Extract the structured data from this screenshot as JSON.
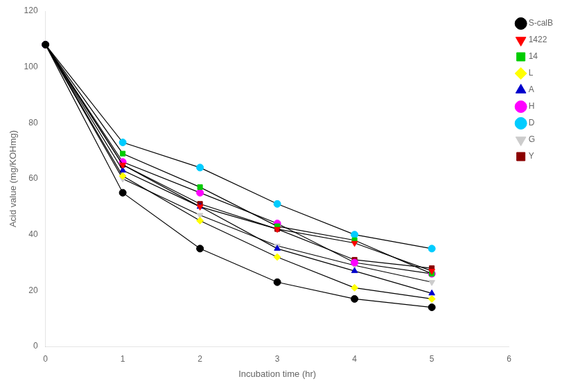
{
  "chart_data": {
    "type": "line",
    "xlabel": "Incubation time (hr)",
    "ylabel": "Acid value (mg/KOHmg)",
    "x": [
      0,
      1,
      2,
      3,
      4,
      5
    ],
    "color": "#000000",
    "series": [
      {
        "name": "S-calB",
        "color": "#000000",
        "marker": "circle",
        "values": [
          108,
          55,
          35,
          23,
          17,
          14
        ]
      },
      {
        "name": "1422",
        "color": "#ff0000",
        "marker": "triangle_down",
        "values": [
          108,
          65,
          50,
          42,
          37,
          27
        ]
      },
      {
        "name": "14",
        "color": "#00cc00",
        "marker": "square",
        "values": [
          108,
          69,
          57,
          43,
          38,
          26
        ]
      },
      {
        "name": "L",
        "color": "#ffff00",
        "marker": "diamond",
        "values": [
          108,
          61,
          45,
          32,
          21,
          17
        ]
      },
      {
        "name": "A",
        "color": "#0000cc",
        "marker": "triangle_up",
        "values": [
          108,
          63,
          50,
          35,
          27,
          19
        ]
      },
      {
        "name": "H",
        "color": "#ff00ff",
        "marker": "circle",
        "values": [
          108,
          66,
          55,
          44,
          30,
          26
        ]
      },
      {
        "name": "D",
        "color": "#00ccff",
        "marker": "circle",
        "values": [
          108,
          73,
          64,
          51,
          40,
          35
        ]
      },
      {
        "name": "G",
        "color": "#cccccc",
        "marker": "triangle_down",
        "values": [
          108,
          60,
          47,
          36,
          29,
          23
        ]
      },
      {
        "name": "Y",
        "color": "#8b0000",
        "marker": "square",
        "values": [
          108,
          65,
          51,
          42,
          31,
          28
        ]
      }
    ],
    "xlim": [
      0,
      6
    ],
    "ylim": [
      0,
      120
    ],
    "xticks": [
      0,
      1,
      2,
      3,
      4,
      5,
      6
    ],
    "yticks": [
      0,
      20,
      40,
      60,
      80,
      100,
      120
    ],
    "grid": false,
    "legend": "right"
  }
}
